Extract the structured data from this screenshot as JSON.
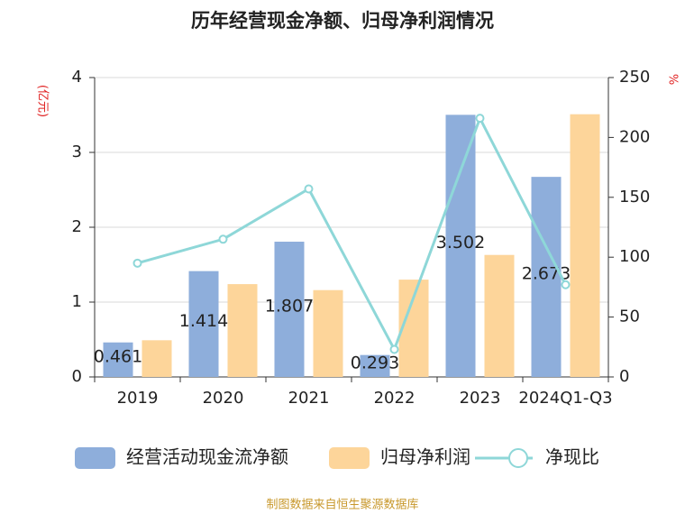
{
  "chart_data": {
    "type": "bar-line",
    "title": "历年经营现金净额、归母净利润情况",
    "y_label": "(亿元)",
    "y2_label": "%",
    "source": "制图数据来自恒生聚源数据库",
    "categories": [
      "2019",
      "2020",
      "2021",
      "2022",
      "2023",
      "2024Q1-Q3"
    ],
    "series": [
      {
        "name": "经营活动现金流净额",
        "color": "#8eaedb",
        "type": "bar",
        "values": [
          0.461,
          1.414,
          1.807,
          0.293,
          3.502,
          2.673
        ],
        "show_labels": true
      },
      {
        "name": "归母净利润",
        "color": "#fdd59a",
        "type": "bar",
        "values": [
          0.49,
          1.24,
          1.16,
          1.3,
          1.63,
          3.51
        ]
      },
      {
        "name": "净现比",
        "color": "#8ed7d8",
        "type": "line",
        "axis": "y2",
        "values": [
          95,
          115,
          157,
          23,
          216,
          77
        ]
      }
    ],
    "ylim": [
      0,
      4
    ],
    "yticks": [
      0,
      1,
      2,
      3,
      4
    ],
    "y2lim": [
      0,
      250
    ],
    "y2ticks": [
      0,
      50,
      100,
      150,
      200,
      250
    ],
    "grid": true
  }
}
